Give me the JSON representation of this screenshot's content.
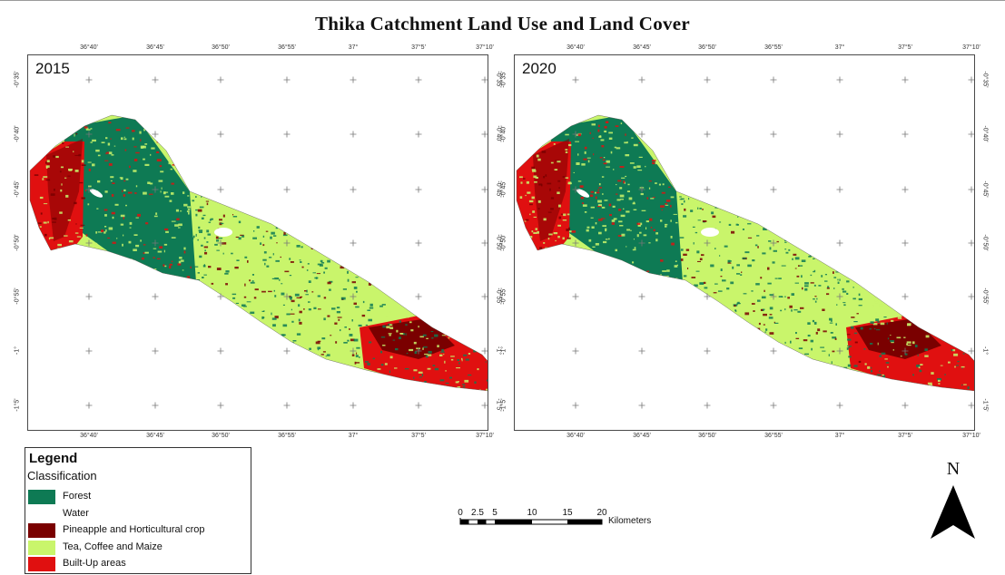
{
  "title": "Thika Catchment Land Use and Land Cover",
  "colors": {
    "forest": "#0e7a54",
    "water": "#ffffff",
    "pineapple": "#7a0000",
    "tea": "#c9f56b",
    "builtup": "#e01010"
  },
  "longitude_labels": [
    "36°40'",
    "36°45'",
    "36°50'",
    "36°55'",
    "37°",
    "37°5'",
    "37°10'"
  ],
  "latitude_labels": [
    "-0°35'",
    "-0°40'",
    "-0°45'",
    "-0°50'",
    "-0°55'",
    "-1°",
    "-1°5'"
  ],
  "maps": [
    {
      "year": "2015"
    },
    {
      "year": "2020"
    }
  ],
  "legend": {
    "title": "Legend",
    "subtitle": "Classification",
    "items": [
      {
        "label": "Forest",
        "color": "#0e7a54"
      },
      {
        "label": "Water",
        "color": "#ffffff"
      },
      {
        "label": "Pineapple and Horticultural crop",
        "color": "#7a0000"
      },
      {
        "label": "Tea, Coffee and Maize",
        "color": "#c9f56b"
      },
      {
        "label": "Built-Up areas",
        "color": "#e01010"
      }
    ]
  },
  "scale": {
    "ticks": [
      "0",
      "2.5",
      "5",
      "10",
      "15",
      "20"
    ],
    "unit": "Kilometers"
  },
  "north_label": "N"
}
